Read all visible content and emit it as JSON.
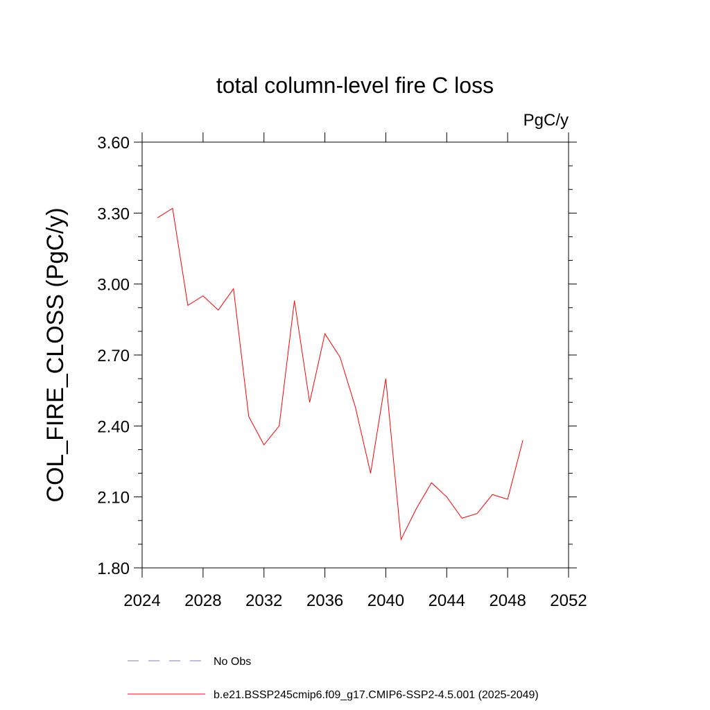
{
  "chart_data": {
    "type": "line",
    "title": "total column-level fire C loss",
    "units": "PgC/y",
    "ylabel": "COL_FIRE_CLOSS  (PgC/y)",
    "xlabel": "",
    "xlim": [
      2024,
      2052
    ],
    "ylim": [
      1.8,
      3.6
    ],
    "x_ticks": [
      "2024",
      "2028",
      "2032",
      "2036",
      "2040",
      "2044",
      "2048",
      "2052"
    ],
    "y_ticks": [
      "1.80",
      "2.10",
      "2.40",
      "2.70",
      "3.00",
      "3.30",
      "3.60"
    ],
    "grid": false,
    "legend_position": "bottom",
    "series": [
      {
        "name": "b.e21.BSSP245cmip6.f09_g17.CMIP6-SSP2-4.5.001 (2025-2049)",
        "color": "#ff0000",
        "style": "solid",
        "x": [
          2025,
          2026,
          2027,
          2028,
          2029,
          2030,
          2031,
          2032,
          2033,
          2034,
          2035,
          2036,
          2037,
          2038,
          2039,
          2040,
          2041,
          2042,
          2043,
          2044,
          2045,
          2046,
          2047,
          2048,
          2049
        ],
        "y": [
          3.28,
          3.32,
          2.91,
          2.95,
          2.89,
          2.98,
          2.44,
          2.32,
          2.4,
          2.93,
          2.5,
          2.79,
          2.69,
          2.48,
          2.2,
          2.6,
          1.92,
          2.05,
          2.16,
          2.1,
          2.01,
          2.03,
          2.11,
          2.09,
          2.34
        ]
      },
      {
        "name": "No Obs",
        "color": "#7b7bd6",
        "style": "dashed",
        "x": [],
        "y": []
      }
    ]
  }
}
